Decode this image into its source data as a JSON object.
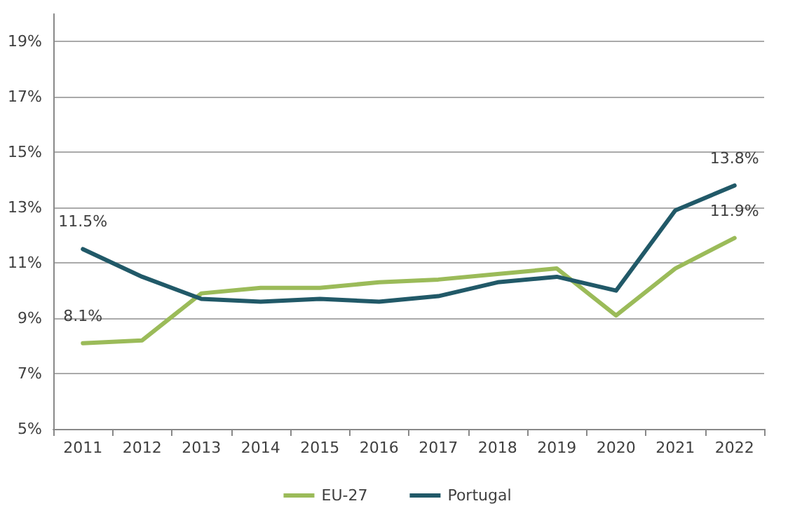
{
  "chart_data": {
    "type": "line",
    "categories": [
      "2011",
      "2012",
      "2013",
      "2014",
      "2015",
      "2016",
      "2017",
      "2018",
      "2019",
      "2020",
      "2021",
      "2022"
    ],
    "series": [
      {
        "name": "EU-27",
        "color": "#9bbb59",
        "values": [
          8.1,
          8.2,
          9.9,
          10.1,
          10.1,
          10.3,
          10.4,
          10.6,
          10.8,
          9.1,
          10.8,
          11.9
        ],
        "value_labels": [
          "8.1%",
          null,
          null,
          null,
          null,
          null,
          null,
          null,
          null,
          null,
          null,
          "11.9%"
        ]
      },
      {
        "name": "Portugal",
        "color": "#215968",
        "values": [
          11.5,
          10.5,
          9.7,
          9.6,
          9.7,
          9.6,
          9.8,
          10.3,
          10.5,
          10.0,
          12.9,
          13.8
        ],
        "value_labels": [
          "11.5%",
          null,
          null,
          null,
          null,
          null,
          null,
          null,
          null,
          null,
          null,
          "13.8%"
        ]
      }
    ],
    "ylim": [
      5,
      20
    ],
    "yticks": [
      {
        "value": 5,
        "label": "5%"
      },
      {
        "value": 7,
        "label": "7%"
      },
      {
        "value": 9,
        "label": "9%"
      },
      {
        "value": 11,
        "label": "11%"
      },
      {
        "value": 13,
        "label": "13%"
      },
      {
        "value": 15,
        "label": "15%"
      },
      {
        "value": 17,
        "label": "17%"
      },
      {
        "value": 19,
        "label": "19%"
      }
    ],
    "grid": "y",
    "legend": "bottom",
    "marker": "none",
    "line_style": "solid"
  }
}
